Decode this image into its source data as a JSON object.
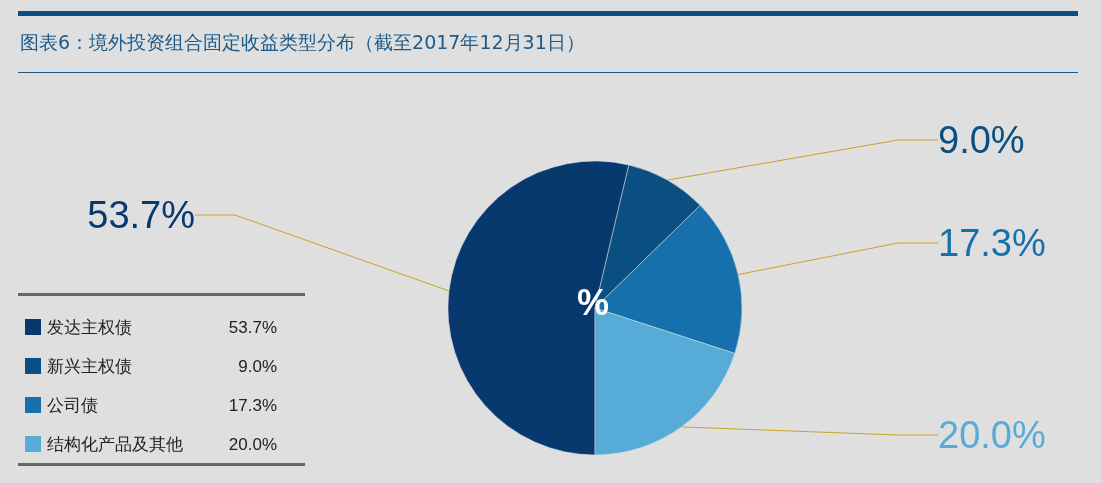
{
  "chart_data": {
    "type": "pie",
    "title": "图表6：境外投资组合固定收益类型分布（截至2017年12月31日）",
    "categories": [
      "发达主权债",
      "新兴主权债",
      "公司债",
      "结构化产品及其他"
    ],
    "values": [
      53.7,
      9.0,
      17.3,
      20.0
    ],
    "colors": [
      "#07396f",
      "#0b4f82",
      "#1570ab",
      "#56acd6"
    ],
    "annotations": [
      "%"
    ],
    "value_labels": [
      "53.7%",
      "9.0%",
      "17.3%",
      "20.0%"
    ],
    "legend": "left"
  }
}
